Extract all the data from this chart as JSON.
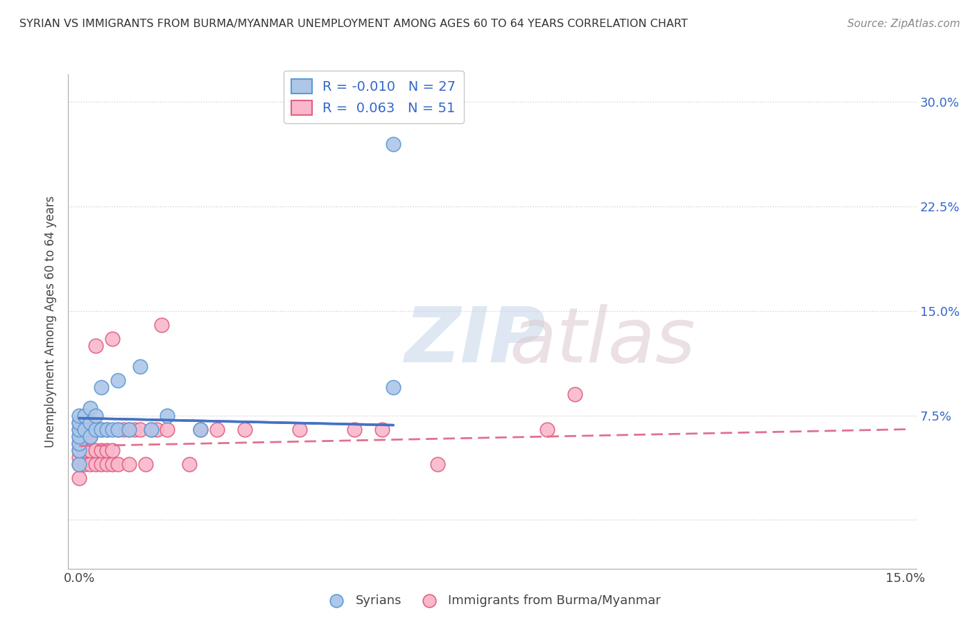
{
  "title": "SYRIAN VS IMMIGRANTS FROM BURMA/MYANMAR UNEMPLOYMENT AMONG AGES 60 TO 64 YEARS CORRELATION CHART",
  "source": "Source: ZipAtlas.com",
  "ylabel": "Unemployment Among Ages 60 to 64 years",
  "xlim": [
    -0.002,
    0.152
  ],
  "ylim": [
    -0.035,
    0.32
  ],
  "xtick_positions": [
    0.0,
    0.15
  ],
  "xtick_labels": [
    "0.0%",
    "15.0%"
  ],
  "ytick_positions": [
    0.0,
    0.075,
    0.15,
    0.225,
    0.3
  ],
  "ytick_labels": [
    "",
    "7.5%",
    "15.0%",
    "22.5%",
    "30.0%"
  ],
  "grid_color": "#d0d0d0",
  "background_color": "#ffffff",
  "syrian_color": "#aec6e8",
  "burma_color": "#f9b8cc",
  "syrian_edge_color": "#5b9bd5",
  "burma_edge_color": "#e06080",
  "syrian_line_color": "#4472c4",
  "burma_line_color": "#e07090",
  "syrian_R": -0.01,
  "syrian_N": 27,
  "burma_R": 0.063,
  "burma_N": 51,
  "legend_label_syrian": "Syrians",
  "legend_label_burma": "Immigrants from Burma/Myanmar",
  "legend_R_color": "#3366cc",
  "syrian_x": [
    0.0,
    0.0,
    0.0,
    0.0,
    0.0,
    0.0,
    0.0,
    0.001,
    0.001,
    0.002,
    0.002,
    0.002,
    0.003,
    0.003,
    0.004,
    0.004,
    0.005,
    0.006,
    0.007,
    0.007,
    0.009,
    0.011,
    0.013,
    0.016,
    0.022,
    0.057,
    0.057
  ],
  "syrian_y": [
    0.04,
    0.05,
    0.055,
    0.06,
    0.065,
    0.07,
    0.075,
    0.065,
    0.075,
    0.06,
    0.07,
    0.08,
    0.065,
    0.075,
    0.065,
    0.095,
    0.065,
    0.065,
    0.065,
    0.1,
    0.065,
    0.11,
    0.065,
    0.075,
    0.065,
    0.095,
    0.27
  ],
  "burma_x": [
    0.0,
    0.0,
    0.0,
    0.0,
    0.0,
    0.0,
    0.0,
    0.0,
    0.001,
    0.001,
    0.001,
    0.001,
    0.002,
    0.002,
    0.002,
    0.002,
    0.003,
    0.003,
    0.003,
    0.003,
    0.004,
    0.004,
    0.004,
    0.005,
    0.005,
    0.005,
    0.006,
    0.006,
    0.006,
    0.007,
    0.007,
    0.008,
    0.009,
    0.009,
    0.01,
    0.011,
    0.012,
    0.013,
    0.014,
    0.015,
    0.016,
    0.02,
    0.022,
    0.025,
    0.03,
    0.04,
    0.05,
    0.055,
    0.065,
    0.085,
    0.09
  ],
  "burma_y": [
    0.03,
    0.04,
    0.045,
    0.05,
    0.055,
    0.06,
    0.065,
    0.07,
    0.04,
    0.05,
    0.06,
    0.065,
    0.04,
    0.05,
    0.06,
    0.065,
    0.04,
    0.05,
    0.065,
    0.125,
    0.04,
    0.05,
    0.065,
    0.04,
    0.05,
    0.065,
    0.04,
    0.05,
    0.13,
    0.04,
    0.065,
    0.065,
    0.04,
    0.065,
    0.065,
    0.065,
    0.04,
    0.065,
    0.065,
    0.14,
    0.065,
    0.04,
    0.065,
    0.065,
    0.065,
    0.065,
    0.065,
    0.065,
    0.04,
    0.065,
    0.09
  ],
  "syrian_trend_x": [
    0.0,
    0.057
  ],
  "syrian_trend_y": [
    0.073,
    0.068
  ],
  "burma_trend_x": [
    0.0,
    0.15
  ],
  "burma_trend_y": [
    0.053,
    0.065
  ]
}
